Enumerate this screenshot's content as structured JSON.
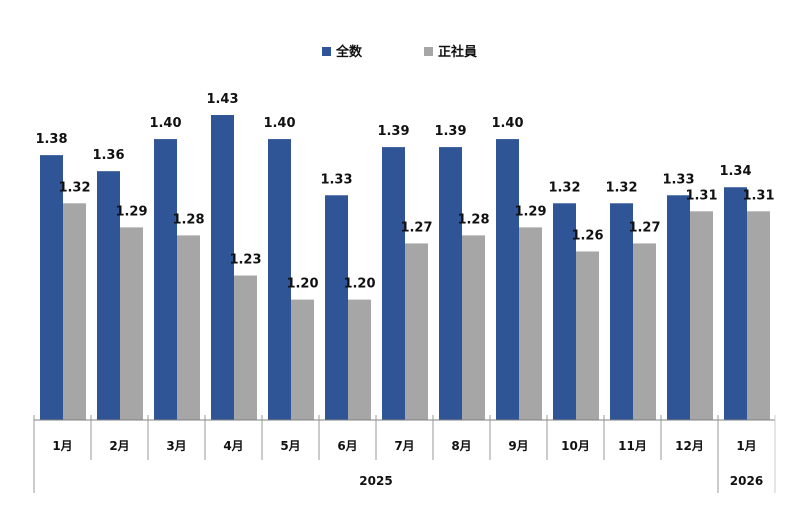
{
  "chart_data": {
    "type": "bar",
    "title": "",
    "categories": [
      "1月",
      "2月",
      "3月",
      "4月",
      "5月",
      "6月",
      "7月",
      "8月",
      "9月",
      "10月",
      "11月",
      "12月",
      "1月"
    ],
    "year_groups": [
      {
        "label": "2025",
        "count": 12
      },
      {
        "label": "2026",
        "count": 1
      }
    ],
    "series": [
      {
        "name": "全数",
        "color": "#2F5597",
        "values": [
          1.38,
          1.36,
          1.4,
          1.43,
          1.4,
          1.33,
          1.39,
          1.39,
          1.4,
          1.32,
          1.32,
          1.33,
          1.34
        ]
      },
      {
        "name": "正社員",
        "color": "#A6A6A6",
        "values": [
          1.32,
          1.29,
          1.28,
          1.23,
          1.2,
          1.2,
          1.27,
          1.28,
          1.29,
          1.26,
          1.27,
          1.31,
          1.31
        ]
      }
    ],
    "ylim": [
      1.05,
      1.45
    ],
    "grid": false,
    "legend": "top-center",
    "xlabel": "",
    "ylabel": ""
  }
}
